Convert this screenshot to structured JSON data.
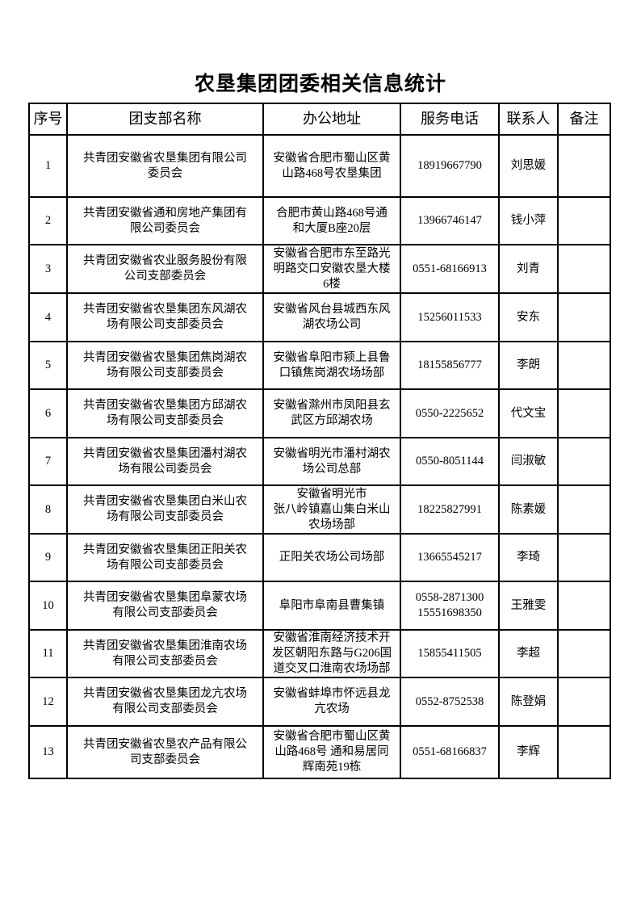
{
  "document": {
    "title": "农垦集团团委相关信息统计",
    "headers": [
      "序号",
      "团支部名称",
      "办公地址",
      "服务电话",
      "联系人",
      "备注"
    ],
    "rows": [
      {
        "no": "1",
        "name": "共青团安徽省农垦集团有限公司\n委员会",
        "address": "安徽省合肥市蜀山区黄\n山路468号农垦集团",
        "phone": "18919667790",
        "contact": "刘思媛",
        "note": ""
      },
      {
        "no": "2",
        "name": "共青团安徽省通和房地产集团有\n限公司委员会",
        "address": "合肥市黄山路468号通\n和大厦B座20层",
        "phone": "13966746147",
        "contact": "钱小萍",
        "note": ""
      },
      {
        "no": "3",
        "name": "共青团安徽省农业服务股份有限\n公司支部委员会",
        "address": "安徽省合肥市东至路光\n明路交口安徽农垦大楼\n6楼",
        "phone": "0551-68166913",
        "contact": "刘青",
        "note": ""
      },
      {
        "no": "4",
        "name": "共青团安徽省农垦集团东风湖农\n场有限公司支部委员会",
        "address": "安徽省风台县城西东风\n湖农场公司",
        "phone": "15256011533",
        "contact": "安东",
        "note": ""
      },
      {
        "no": "5",
        "name": "共青团安徽省农垦集团焦岗湖农\n场有限公司支部委员会",
        "address": "安徽省阜阳市颍上县鲁\n口镇焦岗湖农场场部",
        "phone": "18155856777",
        "contact": "李朗",
        "note": ""
      },
      {
        "no": "6",
        "name": "共青团安徽省农垦集团方邱湖农\n场有限公司支部委员会",
        "address": "安徽省滁州市凤阳县玄\n武区方邱湖农场",
        "phone": "0550-2225652",
        "contact": "代文宝",
        "note": ""
      },
      {
        "no": "7",
        "name": "共青团安徽省农垦集团潘村湖农\n场有限公司委员会",
        "address": "安徽省明光市潘村湖农\n场公司总部",
        "phone": "0550-8051144",
        "contact": "闫淑敏",
        "note": ""
      },
      {
        "no": "8",
        "name": "共青团安徽省农垦集团白米山农\n场有限公司支部委员会",
        "address": "安徽省明光市\n张八岭镇嘉山集白米山\n农场场部",
        "phone": "18225827991",
        "contact": "陈素媛",
        "note": ""
      },
      {
        "no": "9",
        "name": "共青团安徽省农垦集团正阳关农\n场有限公司支部委员会",
        "address": "正阳关农场公司场部",
        "phone": "13665545217",
        "contact": "李琦",
        "note": ""
      },
      {
        "no": "10",
        "name": "共青团安徽省农垦集团阜蒙农场\n有限公司支部委员会",
        "address": "阜阳市阜南县曹集镇",
        "phone": "0558-2871300\n15551698350",
        "contact": "王雅雯",
        "note": ""
      },
      {
        "no": "11",
        "name": "共青团安徽省农垦集团淮南农场\n有限公司支部委员会",
        "address": "安徽省淮南经济技术开\n发区朝阳东路与G206国\n道交叉口淮南农场场部",
        "phone": "15855411505",
        "contact": "李超",
        "note": ""
      },
      {
        "no": "12",
        "name": "共青团安徽省农垦集团龙亢农场\n有限公司支部委员会",
        "address": "安徽省蚌埠市怀远县龙\n亢农场",
        "phone": "0552-8752538",
        "contact": "陈登娟",
        "note": ""
      },
      {
        "no": "13",
        "name": "共青团安徽省农垦农产品有限公\n司支部委员会",
        "address": "安徽省合肥市蜀山区黄\n山路468号 通和易居同\n辉南苑19栋",
        "phone": "0551-68166837",
        "contact": "李辉",
        "note": ""
      }
    ]
  }
}
